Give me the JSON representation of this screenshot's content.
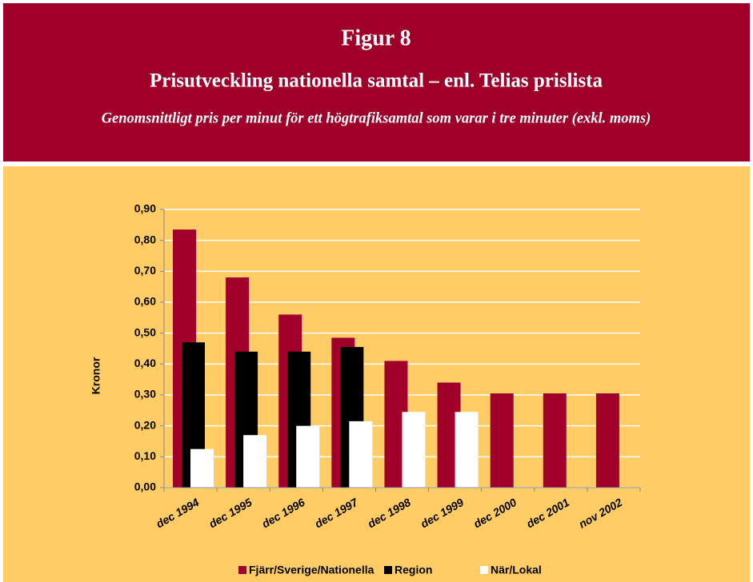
{
  "chart_data": {
    "type": "bar",
    "title": "Figur 8",
    "subtitle": "Prisutveckling nationella samtal – enl. Telias prislista",
    "note": "Genomsnittligt pris per minut för ett högtrafiksamtal som varar i tre minuter (exkl. moms)",
    "y_label": "Kronor",
    "categories": [
      "dec 1994",
      "dec 1995",
      "dec 1996",
      "dec 1997",
      "dec 1998",
      "dec 1999",
      "dec 2000",
      "dec 2001",
      "nov 2002"
    ],
    "series": [
      {
        "name": "Fjärr/Sverige/Nationella",
        "color": "#a0002a",
        "values": [
          0.835,
          0.68,
          0.56,
          0.485,
          0.41,
          0.34,
          0.305,
          0.305,
          0.305
        ]
      },
      {
        "name": "Region",
        "color": "#000000",
        "values": [
          0.47,
          0.44,
          0.44,
          0.455,
          null,
          null,
          null,
          null,
          null
        ]
      },
      {
        "name": "När/Lokal",
        "color": "#ffffff",
        "values": [
          0.125,
          0.17,
          0.2,
          0.215,
          0.245,
          0.245,
          null,
          null,
          null
        ]
      }
    ],
    "ylim": [
      0,
      0.9
    ],
    "yticks": [
      {
        "value": 0,
        "label": "0,00"
      },
      {
        "value": 0.1,
        "label": "0,10"
      },
      {
        "value": 0.2,
        "label": "0,20"
      },
      {
        "value": 0.3,
        "label": "0,30"
      },
      {
        "value": 0.4,
        "label": "0,40"
      },
      {
        "value": 0.5,
        "label": "0,50"
      },
      {
        "value": 0.6,
        "label": "0,60"
      },
      {
        "value": 0.7,
        "label": "0,70"
      },
      {
        "value": 0.8,
        "label": "0,80"
      },
      {
        "value": 0.9,
        "label": "0,90"
      }
    ],
    "grid": true,
    "legend": "bottom"
  }
}
